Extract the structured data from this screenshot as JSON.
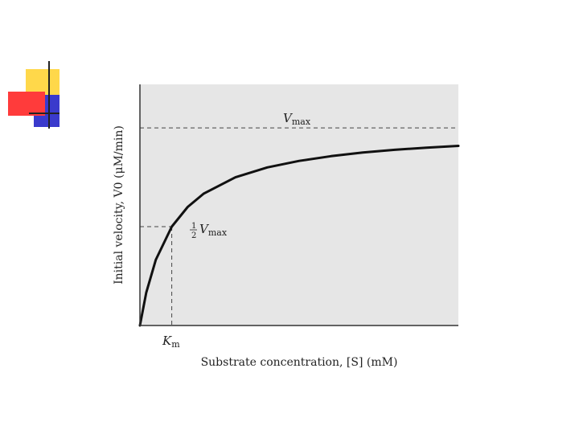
{
  "decoration": {
    "colors": {
      "yellow": "#ffd84a",
      "blue": "#3a3acc",
      "red": "#ff3b3b",
      "line": "#222222"
    }
  },
  "chart_data": {
    "type": "line",
    "title": "",
    "xlabel": "Substrate concentration, [S] (mM)",
    "ylabel": "Initial velocity, V0 (μM/min)",
    "series": [
      {
        "x": [
          0,
          0.2,
          0.5,
          1,
          1.5,
          2,
          3,
          4,
          5,
          6,
          7,
          8,
          9,
          10
        ],
        "y": [
          0,
          0.167,
          0.333,
          0.5,
          0.6,
          0.667,
          0.75,
          0.8,
          0.833,
          0.857,
          0.875,
          0.889,
          0.9,
          0.909
        ]
      }
    ],
    "xlim": [
      0,
      10
    ],
    "ylim": [
      0,
      1.22
    ],
    "reference_lines": {
      "vmax": {
        "y": 1,
        "label_main": "V",
        "label_sub": "max"
      },
      "half_vmax": {
        "y": 0.5,
        "label_num": "1",
        "label_den": "2",
        "label_main": "V",
        "label_sub": "max"
      },
      "km": {
        "x": 1,
        "label_main": "K",
        "label_sub": "m"
      }
    },
    "colors": {
      "plot_bg": "#e6e6e6",
      "curve": "#111111",
      "axis": "#333333",
      "dash": "#444444"
    }
  }
}
